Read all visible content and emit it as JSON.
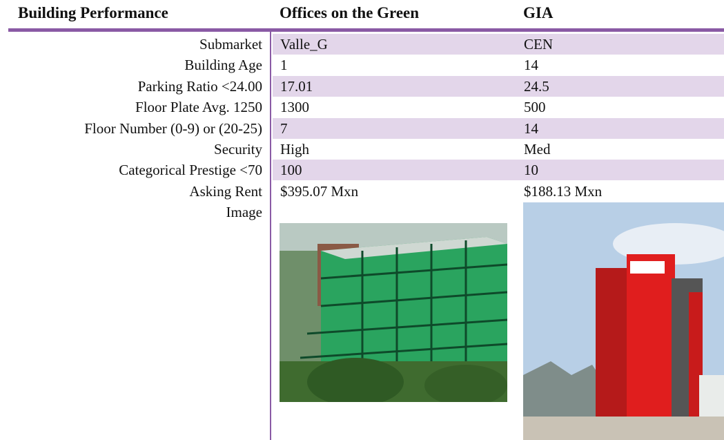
{
  "header": [
    "Building Performance",
    "Offices on the Green",
    "GIA"
  ],
  "rows": [
    [
      "Submarket",
      "Valle_G",
      "CEN"
    ],
    [
      "Building Age",
      "1",
      "14"
    ],
    [
      "Parking Ratio <24.00",
      "17.01",
      "24.5"
    ],
    [
      "Floor Plate Avg. 1250",
      "1300",
      "500"
    ],
    [
      "Floor Number (0-9) or (20-25)",
      "7",
      "14"
    ],
    [
      "Security",
      "High",
      "Med"
    ],
    [
      "Categorical Prestige <70",
      "100",
      "10"
    ],
    [
      "Asking Rent",
      "$395.07 Mxn",
      "$188.13 Mxn"
    ]
  ],
  "image_label": "Image"
}
